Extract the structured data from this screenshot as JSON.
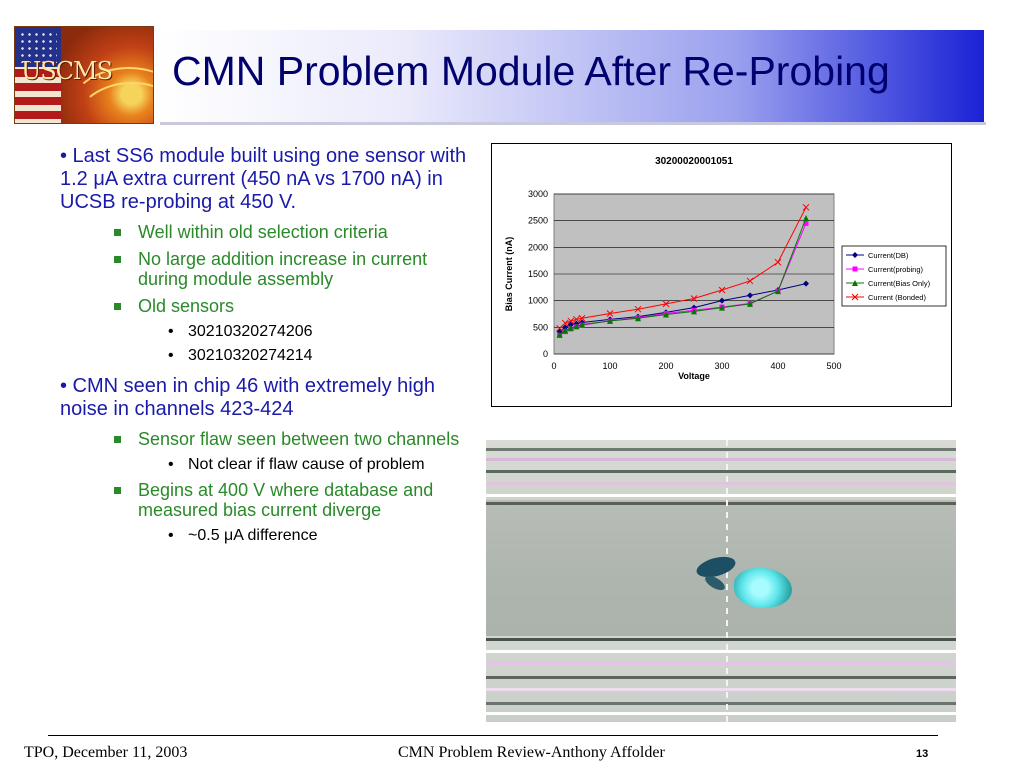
{
  "logo": {
    "text_us": "US",
    "text_cms": "CMS"
  },
  "title": "CMN Problem Module After Re-Probing",
  "bullets": {
    "b1": "• Last SS6 module built using one sensor with 1.2 μA extra current (450 nA vs 1700 nA) in UCSB re-probing at 450 V.",
    "b1_subs": [
      "Well within old selection criteria",
      "No large addition increase in current during module assembly",
      "Old sensors"
    ],
    "b1_subsubs": [
      "30210320274206",
      "30210320274214"
    ],
    "b2": "• CMN seen in chip 46 with extremely high noise in channels 423-424",
    "b2_sub1": "Sensor flaw seen between two channels",
    "b2_sub1_sub": "Not clear if flaw cause of problem",
    "b2_sub2": "Begins at 400 V where database and measured bias current diverge",
    "b2_sub2_sub": "~0.5 μA difference",
    "bullet_glyph": "•"
  },
  "chart_data": {
    "type": "line",
    "title": "30200020001051",
    "xlabel": "Voltage",
    "ylabel": "Bias Current (nA)",
    "xlim": [
      0,
      500
    ],
    "ylim": [
      0,
      3000
    ],
    "xticks": [
      "0",
      "100",
      "200",
      "300",
      "400",
      "500"
    ],
    "yticks": [
      "0",
      "500",
      "1000",
      "1500",
      "2000",
      "2500",
      "3000"
    ],
    "grid": true,
    "legend_position": "right",
    "series": [
      {
        "name": "Current(DB)",
        "color": "#000080",
        "marker": "diamond",
        "x": [
          10,
          20,
          30,
          40,
          50,
          100,
          150,
          200,
          250,
          300,
          350,
          400,
          450
        ],
        "y": [
          420,
          500,
          550,
          570,
          590,
          650,
          700,
          780,
          870,
          1000,
          1100,
          1200,
          1320
        ]
      },
      {
        "name": "Current(probing)",
        "color": "#ff00ff",
        "marker": "square",
        "x": [
          10,
          20,
          30,
          40,
          50,
          100,
          150,
          200,
          250,
          300,
          350,
          400,
          450
        ],
        "y": [
          350,
          420,
          470,
          510,
          540,
          620,
          680,
          760,
          820,
          880,
          950,
          1180,
          2450
        ]
      },
      {
        "name": "Current(Bias Only)",
        "color": "#007a00",
        "marker": "triangle",
        "x": [
          10,
          20,
          30,
          40,
          50,
          100,
          150,
          200,
          250,
          300,
          350,
          400,
          450
        ],
        "y": [
          360,
          440,
          490,
          520,
          550,
          620,
          670,
          740,
          800,
          870,
          940,
          1180,
          2550
        ]
      },
      {
        "name": "Current (Bonded)",
        "color": "#ff0000",
        "marker": "x",
        "x": [
          10,
          20,
          30,
          40,
          50,
          100,
          150,
          200,
          250,
          300,
          350,
          400,
          450
        ],
        "y": [
          480,
          580,
          620,
          650,
          670,
          760,
          840,
          940,
          1040,
          1200,
          1370,
          1720,
          2750
        ]
      }
    ]
  },
  "footer": {
    "left": "TPO, December 11, 2003",
    "center": "CMN Problem Review-Anthony Affolder",
    "page": "13"
  }
}
